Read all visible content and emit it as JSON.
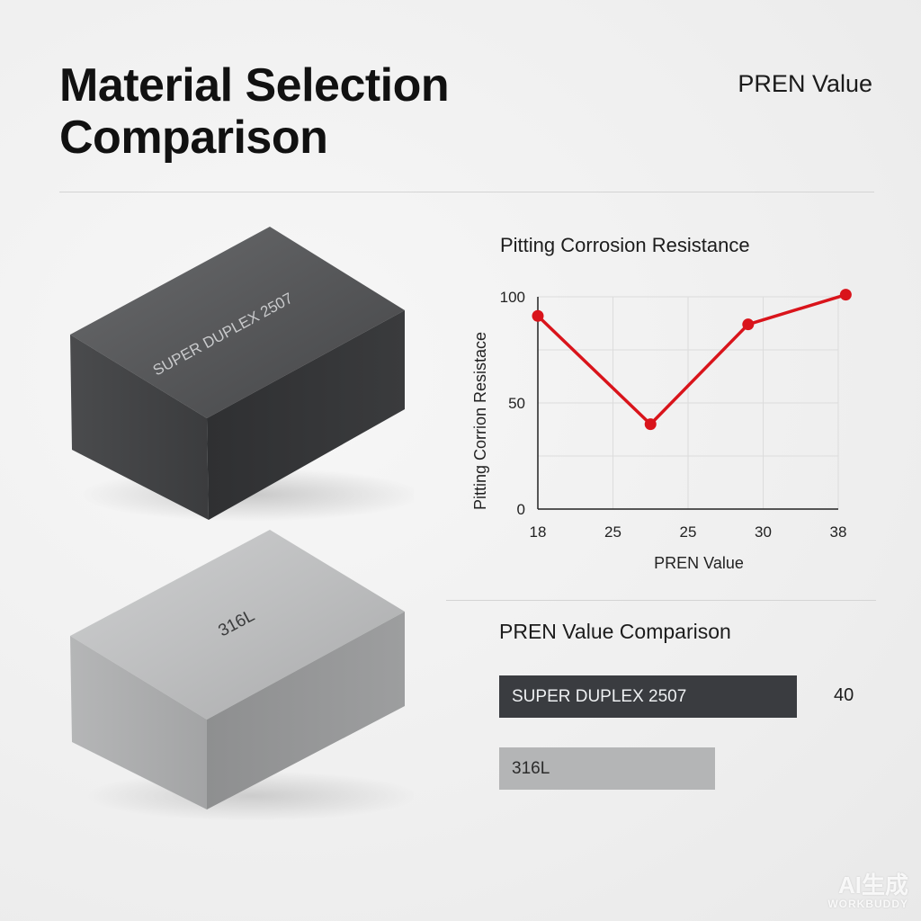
{
  "header": {
    "title_line1": "Material Selection",
    "title_line2": "Comparison",
    "top_right_label": "PREN Value"
  },
  "materials": {
    "block1_label": "SUPER DUPLEX 2507",
    "block2_label": "316L"
  },
  "chart_data": [
    {
      "type": "line",
      "title": "Pitting Corrosion Resistance",
      "xlabel": "PREN Value",
      "ylabel": "Pitting Corrion Resistace",
      "x_ticks": [
        "18",
        "25",
        "25",
        "30",
        "38"
      ],
      "y_ticks": [
        "0",
        "50",
        "100"
      ],
      "ylim": [
        0,
        100
      ],
      "grid": true,
      "series": [
        {
          "values": [
            91,
            40,
            87,
            101
          ],
          "x_positions": [
            0,
            1.5,
            2.8,
            4.1
          ],
          "color": "#d9141b"
        }
      ]
    },
    {
      "type": "bar",
      "title": "PREN Value Comparison",
      "orientation": "horizontal",
      "categories": [
        "SUPER DUPLEX 2507",
        "316L"
      ],
      "values": [
        40,
        29
      ],
      "value_labels": [
        "40",
        ""
      ],
      "colors": [
        "#3a3c40",
        "#b4b5b6"
      ]
    }
  ],
  "watermark": {
    "main": "AI生成",
    "sub": "WORKBUDDY"
  }
}
